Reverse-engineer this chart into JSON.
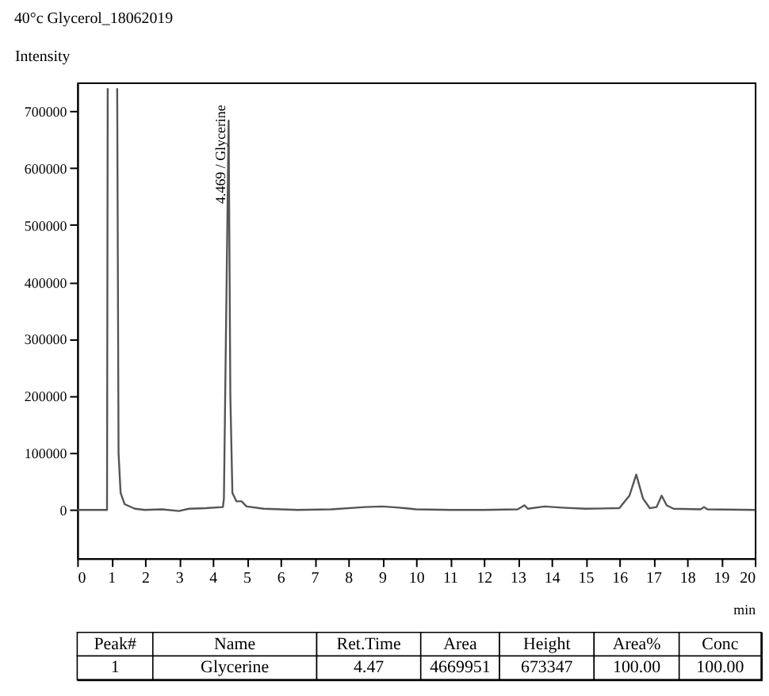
{
  "chart_data": {
    "type": "line",
    "title": "40°c Glycerol_18062019",
    "xlabel": "min",
    "ylabel": "Intensity",
    "x": [
      0,
      0.88,
      0.9,
      1.0,
      1.18,
      1.22,
      1.28,
      1.4,
      1.7,
      2.0,
      2.5,
      3.0,
      3.3,
      3.8,
      4.3,
      4.33,
      4.469,
      4.52,
      4.58,
      4.7,
      4.85,
      5.0,
      5.5,
      6.5,
      7.5,
      8.5,
      9.0,
      9.5,
      10.0,
      11.0,
      12.0,
      13.0,
      13.2,
      13.3,
      13.8,
      14.3,
      15.0,
      16.0,
      16.3,
      16.5,
      16.7,
      16.9,
      17.1,
      17.25,
      17.4,
      17.6,
      18.4,
      18.5,
      18.6,
      20.0
    ],
    "series": [
      {
        "color": "#555555",
        "values": [
          0,
          0,
          740000,
          null,
          740000,
          100000,
          30000,
          10000,
          2000,
          0,
          1000,
          -2000,
          2000,
          3000,
          5000,
          20000,
          683000,
          200000,
          30000,
          15000,
          15000,
          6000,
          2000,
          0,
          1000,
          5000,
          6000,
          4000,
          1000,
          0,
          0,
          1000,
          8000,
          2000,
          6000,
          4000,
          2000,
          3000,
          25000,
          62000,
          20000,
          3000,
          5000,
          25000,
          8000,
          2000,
          1000,
          5000,
          1000,
          0
        ]
      }
    ],
    "xlim": [
      0,
      20
    ],
    "xticks": [
      0,
      1,
      2,
      3,
      4,
      5,
      6,
      7,
      8,
      9,
      10,
      11,
      12,
      13,
      14,
      15,
      16,
      17,
      18,
      19,
      20
    ],
    "ylim": [
      -85000,
      750000
    ],
    "yticks": [
      0,
      100000,
      200000,
      300000,
      400000,
      500000,
      600000,
      700000
    ],
    "grid": false,
    "legend": false,
    "line_style": "solid",
    "marker": "none",
    "annotations": [
      {
        "text": "4.469 / Glycerine",
        "x": 4.469,
        "y": 683000
      },
      "Peak#",
      "Name",
      "Ret.Time",
      "Area",
      "Height",
      "Area%",
      "Conc",
      "1",
      "Glycerine",
      "4.47",
      "4669951",
      "673347",
      "100.00",
      "100.00"
    ]
  }
}
